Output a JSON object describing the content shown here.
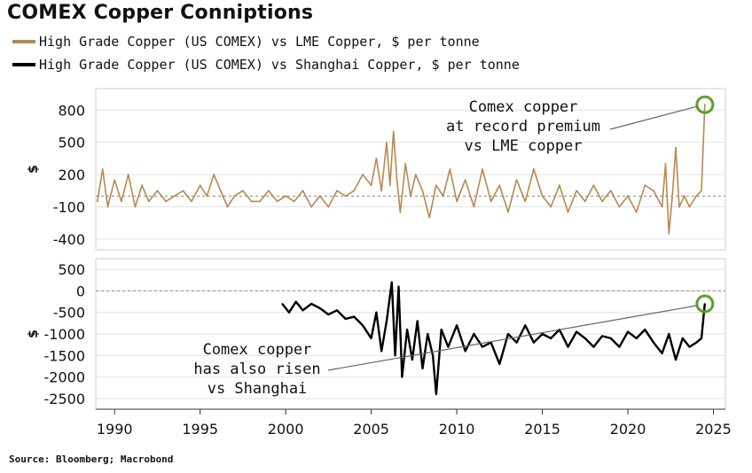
{
  "title": "COMEX Copper Conniptions",
  "source": "Source: Bloomberg; Macrobond",
  "chart_data": [
    {
      "type": "line",
      "panel": "top",
      "series": [
        {
          "name": "High Grade Copper (US COMEX) vs LME Copper, $ per tonne",
          "color": "#b8894f",
          "x": [
            1989.0,
            1989.3,
            1989.6,
            1990.0,
            1990.4,
            1990.8,
            1991.2,
            1991.6,
            1992.0,
            1992.5,
            1993.0,
            1993.5,
            1994.0,
            1994.5,
            1995.0,
            1995.4,
            1995.8,
            1996.2,
            1996.6,
            1997.0,
            1997.5,
            1998.0,
            1998.5,
            1999.0,
            1999.5,
            2000.0,
            2000.5,
            2001.0,
            2001.5,
            2002.0,
            2002.5,
            2003.0,
            2003.5,
            2004.0,
            2004.5,
            2005.0,
            2005.3,
            2005.6,
            2005.9,
            2006.1,
            2006.3,
            2006.5,
            2006.7,
            2007.0,
            2007.3,
            2007.6,
            2008.0,
            2008.4,
            2008.8,
            2009.2,
            2009.6,
            2010.0,
            2010.5,
            2011.0,
            2011.5,
            2012.0,
            2012.5,
            2013.0,
            2013.5,
            2014.0,
            2014.5,
            2015.0,
            2015.5,
            2016.0,
            2016.5,
            2017.0,
            2017.5,
            2018.0,
            2018.5,
            2019.0,
            2019.5,
            2020.0,
            2020.5,
            2021.0,
            2021.5,
            2022.0,
            2022.2,
            2022.4,
            2022.6,
            2022.8,
            2023.0,
            2023.3,
            2023.6,
            2024.0,
            2024.3,
            2024.5
          ],
          "y": [
            -50,
            250,
            -100,
            150,
            -50,
            200,
            -100,
            100,
            -50,
            50,
            -50,
            0,
            50,
            -50,
            100,
            0,
            200,
            50,
            -100,
            0,
            50,
            -50,
            -50,
            50,
            -50,
            0,
            -50,
            50,
            -100,
            0,
            -100,
            50,
            0,
            50,
            200,
            100,
            350,
            50,
            500,
            100,
            600,
            150,
            -150,
            300,
            0,
            200,
            50,
            -200,
            100,
            0,
            250,
            -50,
            150,
            -100,
            250,
            -50,
            100,
            -150,
            150,
            -50,
            250,
            0,
            -100,
            100,
            -150,
            50,
            -50,
            100,
            -50,
            50,
            -100,
            0,
            -150,
            100,
            50,
            -100,
            300,
            -350,
            0,
            450,
            -100,
            0,
            -100,
            0,
            50,
            850
          ]
        }
      ],
      "ylabel": "$",
      "yticks": [
        800,
        500,
        200,
        -100,
        -400
      ],
      "ylim": [
        -500,
        1000
      ],
      "grid": true,
      "annotation": "Comex copper\nat record premium\nvs LME copper"
    },
    {
      "type": "line",
      "panel": "bottom",
      "series": [
        {
          "name": "High Grade Copper (US COMEX) vs Shanghai Copper, $ per tonne",
          "color": "#000000",
          "x": [
            1999.8,
            2000.2,
            2000.6,
            2001.0,
            2001.5,
            2002.0,
            2002.5,
            2003.0,
            2003.5,
            2004.0,
            2004.5,
            2005.0,
            2005.3,
            2005.6,
            2005.9,
            2006.2,
            2006.4,
            2006.6,
            2006.8,
            2007.1,
            2007.4,
            2007.7,
            2008.0,
            2008.3,
            2008.6,
            2008.8,
            2009.1,
            2009.5,
            2010.0,
            2010.5,
            2011.0,
            2011.5,
            2012.0,
            2012.5,
            2013.0,
            2013.5,
            2014.0,
            2014.5,
            2015.0,
            2015.5,
            2016.0,
            2016.5,
            2017.0,
            2017.5,
            2018.0,
            2018.5,
            2019.0,
            2019.5,
            2020.0,
            2020.5,
            2021.0,
            2021.5,
            2022.0,
            2022.4,
            2022.8,
            2023.2,
            2023.6,
            2024.0,
            2024.3,
            2024.5
          ],
          "y": [
            -300,
            -500,
            -250,
            -450,
            -300,
            -400,
            -550,
            -450,
            -650,
            -600,
            -800,
            -1100,
            -500,
            -1400,
            -700,
            200,
            -1500,
            100,
            -2000,
            -900,
            -1600,
            -700,
            -1800,
            -1000,
            -1500,
            -2400,
            -900,
            -1300,
            -800,
            -1400,
            -1000,
            -1300,
            -1200,
            -1700,
            -1000,
            -1200,
            -800,
            -1200,
            -1000,
            -1100,
            -900,
            -1300,
            -950,
            -1100,
            -1300,
            -1050,
            -1100,
            -1300,
            -950,
            -1100,
            -900,
            -1200,
            -1450,
            -1000,
            -1600,
            -1100,
            -1300,
            -1200,
            -1100,
            -300
          ]
        }
      ],
      "ylabel": "$",
      "yticks": [
        500,
        0,
        -500,
        -1000,
        -1500,
        -2000,
        -2500
      ],
      "ylim": [
        -2750,
        750
      ],
      "grid": true,
      "annotation": "Comex copper\nhas also risen\nvs Shanghai"
    }
  ],
  "xaxis": {
    "ticks": [
      1990,
      1995,
      2000,
      2005,
      2010,
      2015,
      2020,
      2025
    ],
    "xlim": [
      1988.9,
      2025.7
    ]
  }
}
